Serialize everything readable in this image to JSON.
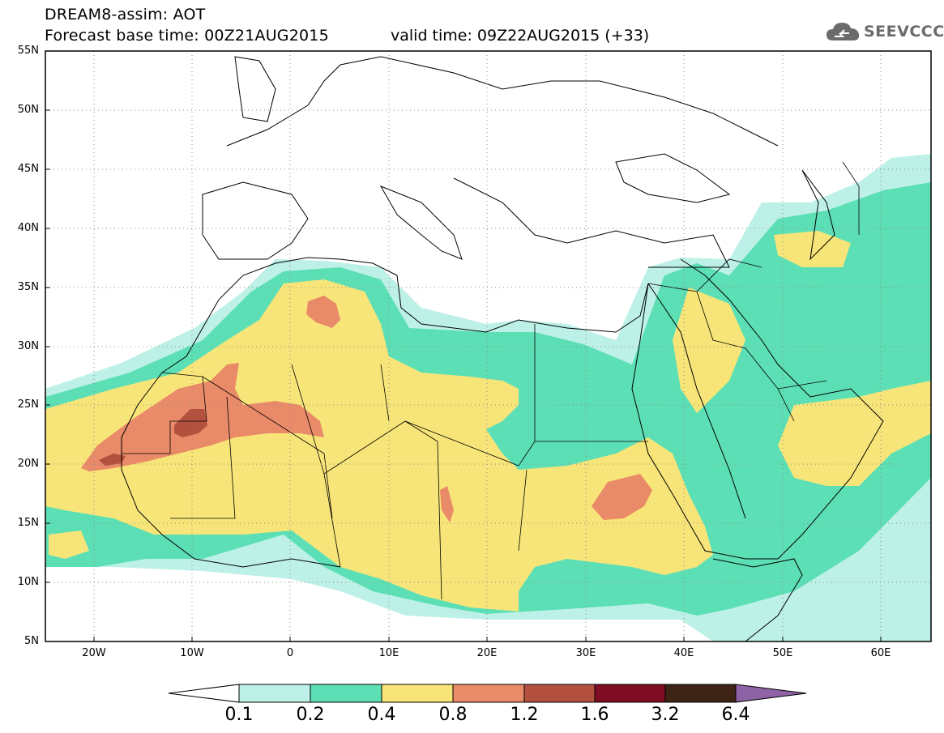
{
  "header": {
    "title_line1": "DREAM8-assim: AOT",
    "title_line2": "Forecast base time: 00Z21AUG2015",
    "valid_time": "valid time: 09Z22AUG2015 (+33)",
    "logo_text": "SEEVCCC"
  },
  "map": {
    "lat_labels": [
      "55N",
      "50N",
      "45N",
      "40N",
      "35N",
      "30N",
      "25N",
      "20N",
      "15N",
      "10N",
      "5N"
    ],
    "lon_labels": [
      "20W",
      "10W",
      "0",
      "10E",
      "20E",
      "30E",
      "40E",
      "50E",
      "60E"
    ]
  },
  "colorbar": {
    "labels": [
      "0.1",
      "0.2",
      "0.4",
      "0.8",
      "1.2",
      "1.6",
      "3.2",
      "6.4"
    ],
    "colors": [
      "#bdf1e7",
      "#5ddfb6",
      "#f8e579",
      "#e98a68",
      "#b4503e",
      "#7e0d24",
      "#3d2414",
      "#8e63a6"
    ]
  }
}
